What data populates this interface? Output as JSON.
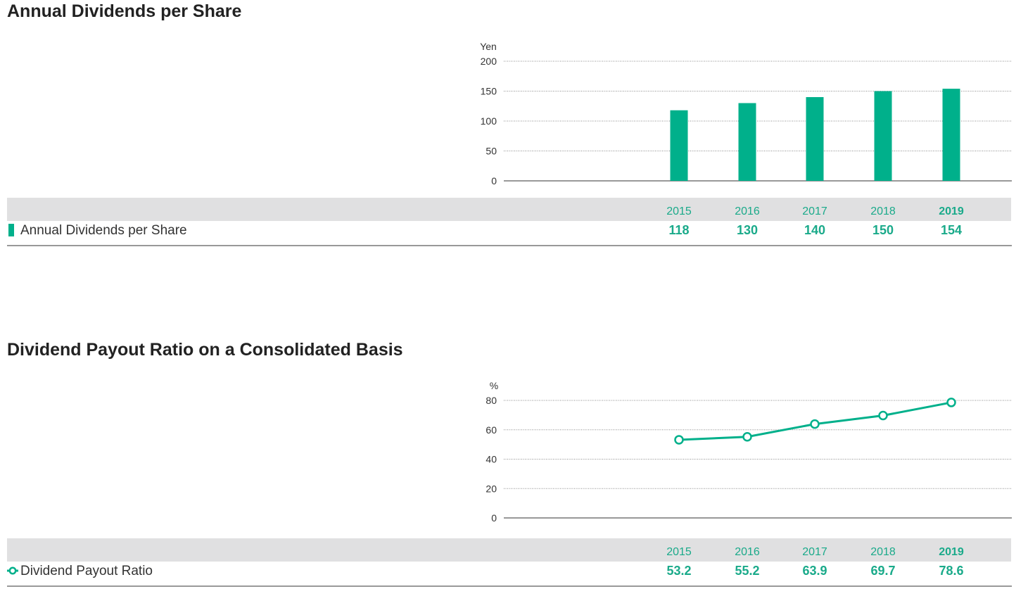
{
  "colors": {
    "accent": "#00b08b",
    "accent_text": "#1aaa8a",
    "header_bg": "#e0e0e1"
  },
  "chart_data": [
    {
      "type": "bar",
      "title": "Annual Dividends per Share",
      "yunit": "Yen",
      "ylim": [
        0,
        200
      ],
      "yticks": [
        "0",
        "50",
        "100",
        "150",
        "200"
      ],
      "grid": true,
      "categories": [
        "2015",
        "2016",
        "2017",
        "2018",
        "2019"
      ],
      "highlight": "2019",
      "series": [
        {
          "name": "Annual Dividends per Share",
          "values": [
            118,
            130,
            140,
            150,
            154
          ],
          "labels": [
            "118",
            "130",
            "140",
            "150",
            "154"
          ]
        }
      ]
    },
    {
      "type": "line",
      "title": "Dividend Payout Ratio on a Consolidated Basis",
      "yunit": "%",
      "ylim": [
        0,
        80
      ],
      "yticks": [
        "0",
        "20",
        "40",
        "60",
        "80"
      ],
      "grid": true,
      "categories": [
        "2015",
        "2016",
        "2017",
        "2018",
        "2019"
      ],
      "highlight": "2019",
      "series": [
        {
          "name": "Dividend Payout Ratio",
          "values": [
            53.2,
            55.2,
            63.9,
            69.7,
            78.6
          ],
          "labels": [
            "53.2",
            "55.2",
            "63.9",
            "69.7",
            "78.6"
          ]
        }
      ]
    }
  ]
}
